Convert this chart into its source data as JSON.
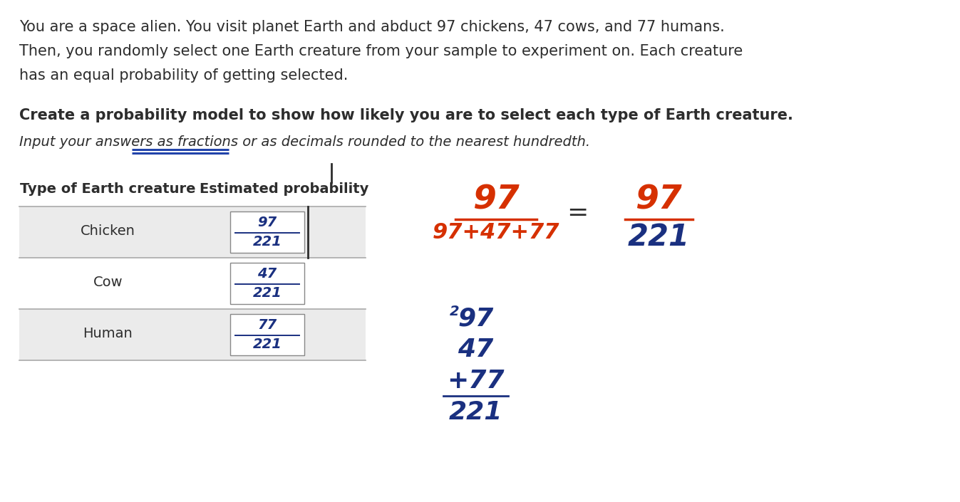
{
  "background_color": "#ffffff",
  "para_line1": "You are a space alien. You visit planet Earth and abduct 97 chickens, 47 cows, and 77 humans.",
  "para_line2": "Then, you randomly select one Earth creature from your sample to experiment on. Each creature",
  "para_line3": "has an equal probability of getting selected.",
  "bold_text": "Create a probability model to show how likely you are to select each type of Earth creature.",
  "italic_text": "Input your answers as fractions or as decimals rounded to the nearest hundredth.",
  "table_header_col1": "Type of Earth creature",
  "table_header_col2": "Estimated probability",
  "rows": [
    {
      "creature": "Chicken",
      "fraction_num": "97",
      "fraction_den": "221",
      "bg": "#ebebeb"
    },
    {
      "creature": "Cow",
      "fraction_num": "47",
      "fraction_den": "221",
      "bg": "#ffffff"
    },
    {
      "creature": "Human",
      "fraction_num": "77",
      "fraction_den": "221",
      "bg": "#ebebeb"
    }
  ],
  "ann_num": "97",
  "ann_den": "97+47+77",
  "ann_eq": "=",
  "ann_r_num": "97",
  "ann_r_den": "221",
  "add_super": "2",
  "add_lines": [
    "97",
    "47",
    "+77",
    "221"
  ],
  "text_color": "#2d2d2d",
  "blue_color": "#1a3080",
  "red_color": "#d63000",
  "box_color": "#888888",
  "divider_color": "#aaaaaa",
  "underline_color": "#2244aa",
  "tick_color": "#2d2d2d"
}
